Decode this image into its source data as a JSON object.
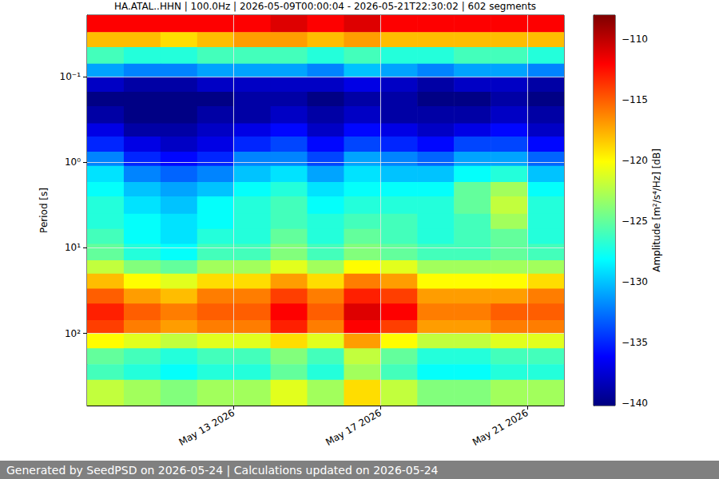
{
  "chart_data": {
    "type": "heatmap",
    "title": "HA.ATAL..HHN | 100.0Hz | 2026-05-09T00:00:04 - 2026-05-21T22:30:02 | 602 segments",
    "footer": "Generated by SeedPSD on 2026-05-24 | Calculations updated on 2026-05-24",
    "y_label": "Period [s]",
    "log": "y",
    "grid": true,
    "x": [
      "2026-05-09",
      "2026-05-10",
      "2026-05-11",
      "2026-05-12",
      "2026-05-13",
      "2026-05-14",
      "2026-05-15",
      "2026-05-16",
      "2026-05-17",
      "2026-05-18",
      "2026-05-19",
      "2026-05-20",
      "2026-05-21"
    ],
    "xlim": [
      "2026-05-09",
      "2026-05-22"
    ],
    "xticks": [
      {
        "value": "2026-05-13",
        "label": "May 13 2026"
      },
      {
        "value": "2026-05-17",
        "label": "May 17 2026"
      },
      {
        "value": "2026-05-21",
        "label": "May 21 2026"
      }
    ],
    "y_edges": [
      0.019,
      0.03,
      0.045,
      0.07,
      0.1,
      0.15,
      0.22,
      0.35,
      0.5,
      0.75,
      1.1,
      1.7,
      2.5,
      4,
      6,
      9,
      14,
      20,
      30,
      45,
      70,
      100,
      150,
      230,
      350,
      700
    ],
    "ylim": [
      0.019,
      700
    ],
    "yticks": [
      {
        "value": 0.1,
        "label": "10⁻¹"
      },
      {
        "value": 1,
        "label": "10⁰"
      },
      {
        "value": 10,
        "label": "10¹"
      },
      {
        "value": 100,
        "label": "10²"
      }
    ],
    "cells": [
      [
        -112,
        -112,
        -112,
        -112,
        -112,
        -111,
        -112,
        -111,
        -112,
        -112,
        -112,
        -112,
        -112
      ],
      [
        -118,
        -118,
        -119,
        -118,
        -117,
        -117,
        -118,
        -117,
        -118,
        -118,
        -118,
        -118,
        -118
      ],
      [
        -126,
        -127,
        -127,
        -126,
        -126,
        -126,
        -127,
        -126,
        -127,
        -127,
        -126,
        -126,
        -127
      ],
      [
        -131,
        -132,
        -132,
        -131,
        -131,
        -131,
        -132,
        -130,
        -131,
        -132,
        -131,
        -131,
        -132
      ],
      [
        -138,
        -139,
        -139,
        -138,
        -138,
        -138,
        -138,
        -137,
        -138,
        -139,
        -138,
        -138,
        -139
      ],
      [
        -140,
        -140,
        -140,
        -140,
        -139,
        -139,
        -140,
        -139,
        -139,
        -140,
        -140,
        -139,
        -140
      ],
      [
        -139,
        -140,
        -140,
        -139,
        -139,
        -138,
        -139,
        -138,
        -139,
        -139,
        -139,
        -138,
        -139
      ],
      [
        -137,
        -139,
        -139,
        -138,
        -137,
        -136,
        -138,
        -136,
        -137,
        -138,
        -137,
        -136,
        -138
      ],
      [
        -135,
        -137,
        -138,
        -137,
        -135,
        -134,
        -136,
        -134,
        -135,
        -136,
        -134,
        -134,
        -136
      ],
      [
        -132,
        -135,
        -136,
        -135,
        -132,
        -132,
        -134,
        -131,
        -132,
        -133,
        -131,
        -131,
        -133
      ],
      [
        -129,
        -132,
        -133,
        -132,
        -130,
        -129,
        -131,
        -129,
        -130,
        -130,
        -128,
        -127,
        -130
      ],
      [
        -128,
        -130,
        -131,
        -130,
        -128,
        -127,
        -129,
        -128,
        -128,
        -128,
        -125,
        -123,
        -128
      ],
      [
        -127,
        -129,
        -130,
        -128,
        -127,
        -126,
        -128,
        -127,
        -127,
        -127,
        -125,
        -122,
        -127
      ],
      [
        -127,
        -128,
        -129,
        -128,
        -127,
        -126,
        -127,
        -126,
        -126,
        -127,
        -126,
        -123,
        -127
      ],
      [
        -126,
        -128,
        -129,
        -127,
        -127,
        -125,
        -127,
        -125,
        -126,
        -127,
        -126,
        -125,
        -127
      ],
      [
        -125,
        -127,
        -128,
        -126,
        -126,
        -124,
        -126,
        -124,
        -125,
        -126,
        -126,
        -125,
        -126
      ],
      [
        -122,
        -124,
        -125,
        -123,
        -123,
        -121,
        -123,
        -120,
        -121,
        -123,
        -123,
        -123,
        -123
      ],
      [
        -118,
        -120,
        -121,
        -119,
        -119,
        -117,
        -119,
        -116,
        -117,
        -120,
        -120,
        -120,
        -119
      ],
      [
        -115,
        -117,
        -118,
        -116,
        -116,
        -114,
        -116,
        -113,
        -114,
        -117,
        -117,
        -117,
        -116
      ],
      [
        -113,
        -115,
        -116,
        -115,
        -115,
        -112,
        -115,
        -111,
        -112,
        -116,
        -116,
        -115,
        -115
      ],
      [
        -114,
        -116,
        -117,
        -116,
        -116,
        -113,
        -116,
        -112,
        -114,
        -117,
        -117,
        -116,
        -116
      ],
      [
        -120,
        -121,
        -122,
        -121,
        -121,
        -119,
        -121,
        -117,
        -120,
        -122,
        -122,
        -121,
        -121
      ],
      [
        -125,
        -126,
        -127,
        -126,
        -126,
        -124,
        -126,
        -122,
        -125,
        -127,
        -127,
        -126,
        -126
      ],
      [
        -126,
        -127,
        -128,
        -127,
        -127,
        -125,
        -127,
        -123,
        -126,
        -128,
        -128,
        -127,
        -127
      ],
      [
        -122,
        -123,
        -124,
        -123,
        -123,
        -121,
        -123,
        -119,
        -122,
        -124,
        -124,
        -123,
        -123
      ]
    ],
    "colorbar": {
      "label": "Amplitude [m²/s⁴/Hz] [dB]",
      "range": [
        -140.2,
        -108
      ],
      "ticks": [
        {
          "value": -110,
          "label": "−110"
        },
        {
          "value": -115,
          "label": "−115"
        },
        {
          "value": -120,
          "label": "−120"
        },
        {
          "value": -125,
          "label": "−125"
        },
        {
          "value": -130,
          "label": "−130"
        },
        {
          "value": -135,
          "label": "−135"
        },
        {
          "value": -140,
          "label": "−140"
        }
      ]
    }
  }
}
